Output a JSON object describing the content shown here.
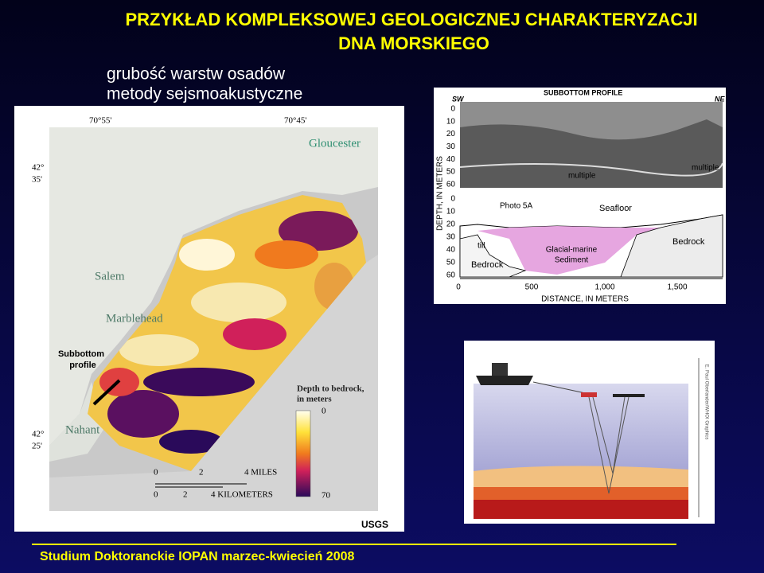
{
  "title": [
    "PRZYKŁAD KOMPLEKSOWEJ GEOLOGICZNEJ CHARAKTERYZACJI",
    "DNA MORSKIEGO"
  ],
  "subtitle": [
    "grubość warstw osadów",
    "metody sejsmoakustyczne"
  ],
  "map": {
    "longitudes": [
      "70°55'",
      "70°45'"
    ],
    "latitudes": [
      [
        "42°",
        "35'"
      ],
      [
        "42°",
        "25'"
      ]
    ],
    "places": [
      "Gloucester",
      "Salem",
      "Marblehead",
      "Nahant"
    ],
    "profile_label": [
      "Subbottom",
      "profile"
    ],
    "legend": {
      "title": [
        "Depth to bedrock,",
        "in meters"
      ],
      "min": "0",
      "max": "70"
    },
    "scale": {
      "miles": [
        "0",
        "2",
        "4 MILES"
      ],
      "kilometers": [
        "0",
        "2",
        "4 KILOMETERS"
      ]
    },
    "credit": "USGS"
  },
  "profile": {
    "title": "SUBBOTTOM PROFILE",
    "sw": "SW",
    "ne": "NE",
    "depth_ticks_top": [
      "0",
      "10",
      "20",
      "30",
      "40",
      "50",
      "60"
    ],
    "depth_ticks_bottom": [
      "0",
      "10",
      "20",
      "30",
      "40",
      "50",
      "60"
    ],
    "y_label": "DEPTH, IN METERS",
    "x_ticks": [
      "0",
      "500",
      "1,000",
      "1,500"
    ],
    "x_label": "DISTANCE, IN METERS",
    "labels": {
      "multiple_1": "multiple",
      "multiple_2": "multiple",
      "photo": "Photo 5A",
      "seafloor": "Seafloor",
      "till": "till",
      "sediment": [
        "Glacial-marine",
        "Sediment"
      ],
      "bedrock_1": "Bedrock",
      "bedrock_2": "Bedrock"
    }
  },
  "illustration": {
    "credit": "E. Paul Oberlander/WHOI Graphics"
  },
  "footer": "Studium Doktoranckie IOPAN marzec-kwiecień 2008"
}
